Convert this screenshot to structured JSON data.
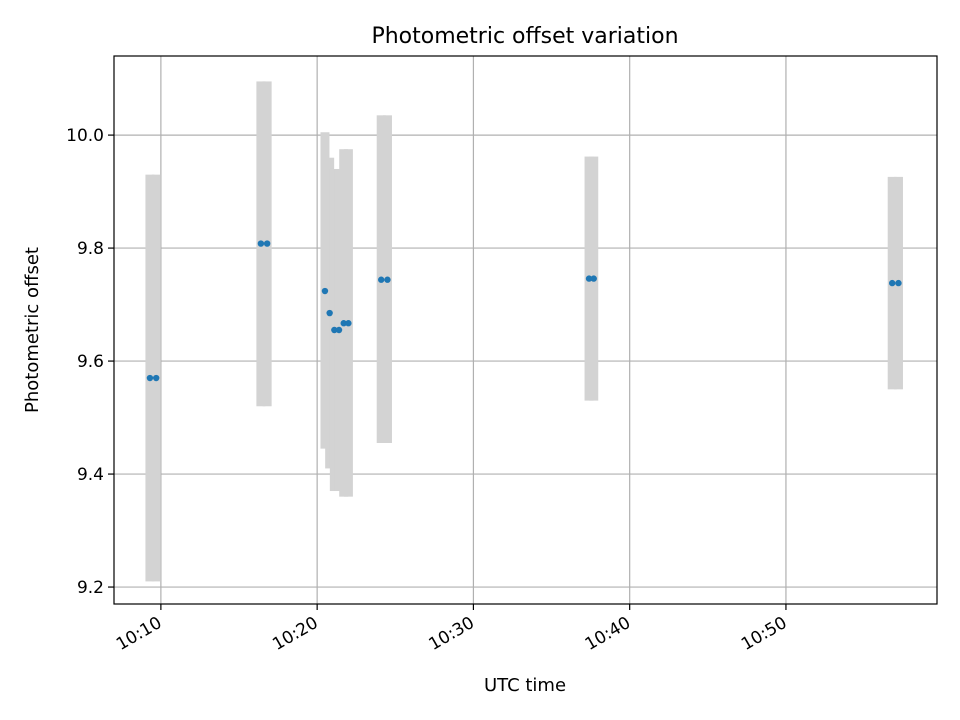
{
  "chart_data": {
    "type": "scatter",
    "title": "Photometric offset variation",
    "xlabel": "UTC time",
    "ylabel": "Photometric offset",
    "x_unit": "time",
    "xlim": [
      "10:07:00",
      "10:59:40"
    ],
    "ylim": [
      9.17,
      10.14
    ],
    "xticks": [
      "10:10",
      "10:20",
      "10:30",
      "10:40",
      "10:50"
    ],
    "yticks": [
      "9.2",
      "9.4",
      "9.6",
      "9.8",
      "10.0"
    ],
    "grid": true,
    "error_bar_color": "#d3d3d3",
    "point_color": "#1f77b4",
    "points": [
      {
        "x": "10:09:18",
        "y": 9.57,
        "ylow": 9.21,
        "yhigh": 9.93
      },
      {
        "x": "10:09:42",
        "y": 9.57,
        "ylow": 9.21,
        "yhigh": 9.93
      },
      {
        "x": "10:16:24",
        "y": 9.808,
        "ylow": 9.52,
        "yhigh": 10.095
      },
      {
        "x": "10:16:48",
        "y": 9.808,
        "ylow": 9.52,
        "yhigh": 10.095
      },
      {
        "x": "10:20:30",
        "y": 9.724,
        "ylow": 9.445,
        "yhigh": 10.005
      },
      {
        "x": "10:20:48",
        "y": 9.685,
        "ylow": 9.41,
        "yhigh": 9.96
      },
      {
        "x": "10:21:06",
        "y": 9.655,
        "ylow": 9.37,
        "yhigh": 9.94
      },
      {
        "x": "10:21:24",
        "y": 9.655,
        "ylow": 9.37,
        "yhigh": 9.94
      },
      {
        "x": "10:21:42",
        "y": 9.667,
        "ylow": 9.36,
        "yhigh": 9.975
      },
      {
        "x": "10:22:00",
        "y": 9.667,
        "ylow": 9.36,
        "yhigh": 9.975
      },
      {
        "x": "10:24:06",
        "y": 9.744,
        "ylow": 9.455,
        "yhigh": 10.035
      },
      {
        "x": "10:24:30",
        "y": 9.744,
        "ylow": 9.455,
        "yhigh": 10.035
      },
      {
        "x": "10:37:24",
        "y": 9.746,
        "ylow": 9.53,
        "yhigh": 9.962
      },
      {
        "x": "10:37:42",
        "y": 9.746,
        "ylow": 9.53,
        "yhigh": 9.962
      },
      {
        "x": "10:56:48",
        "y": 9.738,
        "ylow": 9.55,
        "yhigh": 9.926
      },
      {
        "x": "10:57:12",
        "y": 9.738,
        "ylow": 9.55,
        "yhigh": 9.926
      }
    ]
  }
}
